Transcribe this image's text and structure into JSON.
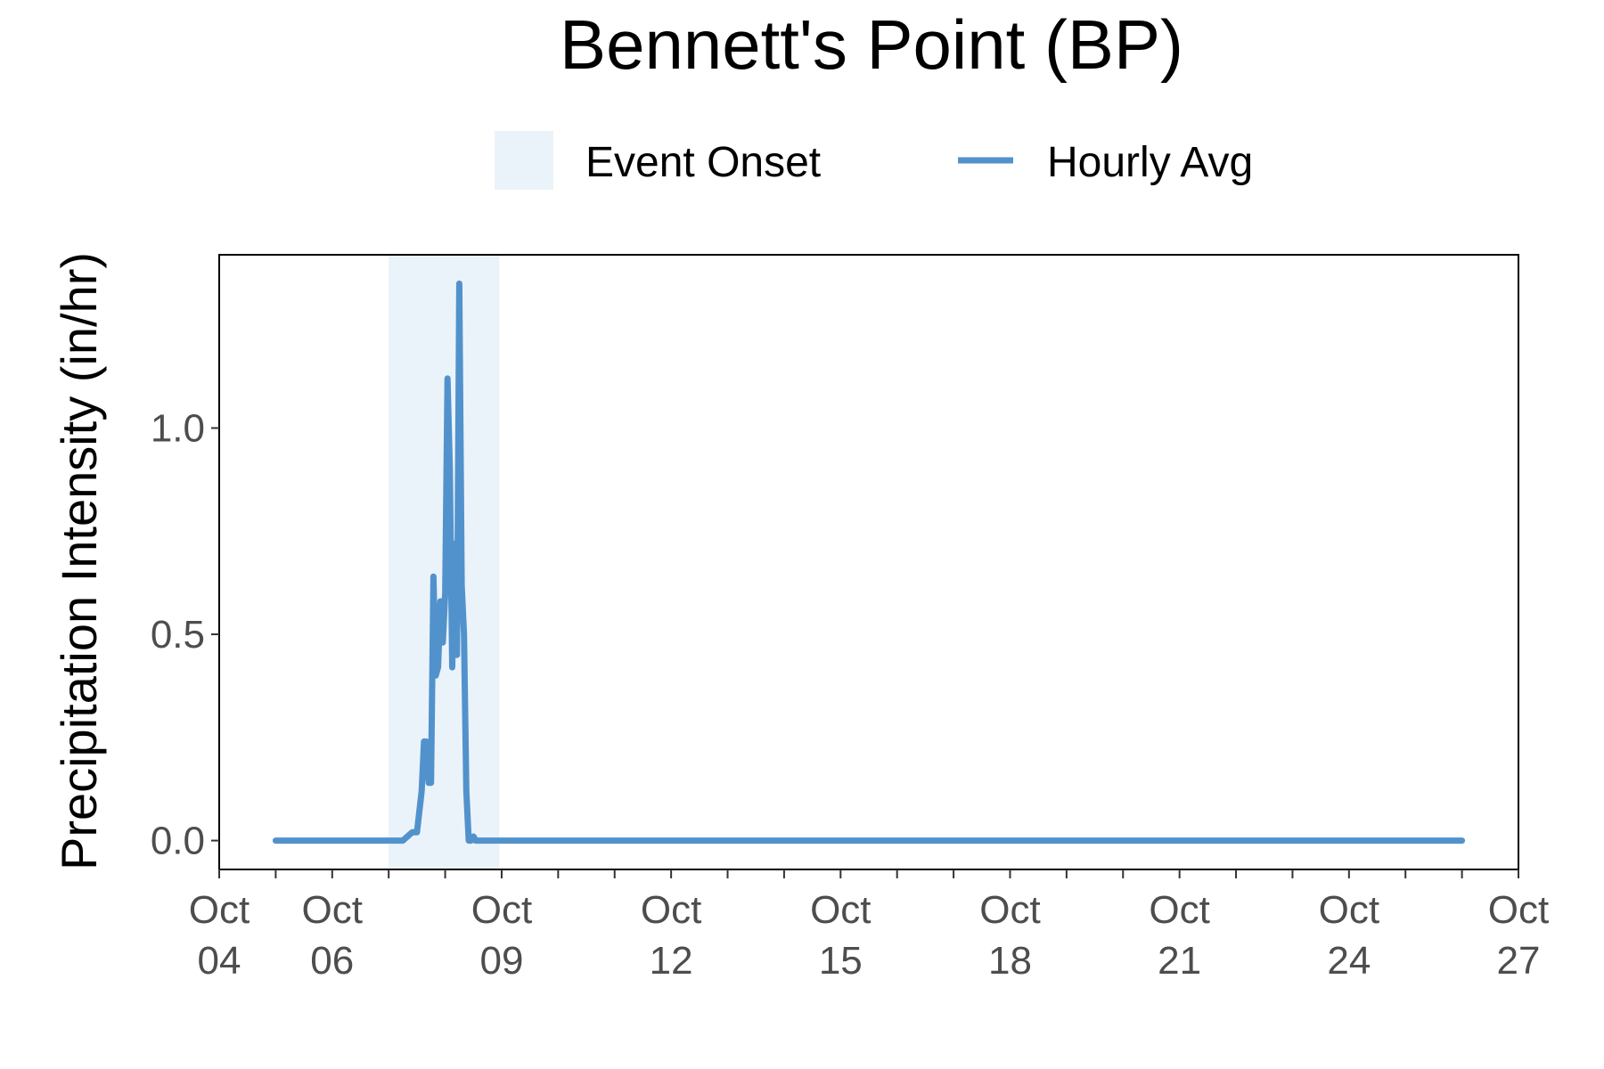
{
  "chart_data": {
    "type": "line",
    "title": "Bennett's Point (BP)",
    "xlabel": "",
    "ylabel": "Precipitation Intensity (in/hr)",
    "x_axis": {
      "type": "date",
      "range": [
        "10-04",
        "10-27"
      ],
      "major_ticks": [
        {
          "value": "10-04",
          "line1": "Oct",
          "line2": "04"
        },
        {
          "value": "10-06",
          "line1": "Oct",
          "line2": "06"
        },
        {
          "value": "10-09",
          "line1": "Oct",
          "line2": "09"
        },
        {
          "value": "10-12",
          "line1": "Oct",
          "line2": "12"
        },
        {
          "value": "10-15",
          "line1": "Oct",
          "line2": "15"
        },
        {
          "value": "10-18",
          "line1": "Oct",
          "line2": "18"
        },
        {
          "value": "10-21",
          "line1": "Oct",
          "line2": "21"
        },
        {
          "value": "10-24",
          "line1": "Oct",
          "line2": "24"
        },
        {
          "value": "10-27",
          "line1": "Oct",
          "line2": "27"
        }
      ],
      "minor_tick_interval_days": 1
    },
    "y_axis": {
      "range": [
        -0.07,
        1.42
      ],
      "ticks": [
        {
          "value": 0.0,
          "label": "0.0"
        },
        {
          "value": 0.5,
          "label": "0.5"
        },
        {
          "value": 1.0,
          "label": "1.0"
        }
      ]
    },
    "grid": false,
    "legend": {
      "placement": "top",
      "items": [
        {
          "label": "Event Onset",
          "kind": "shade",
          "color": "#ebf3fa"
        },
        {
          "label": "Hourly Avg",
          "kind": "line",
          "color": "#5292cc"
        }
      ]
    },
    "shaded_regions": [
      {
        "name": "Event Onset",
        "start": "10-07 00:00",
        "end": "10-08 23:00",
        "color": "#ebf3fa"
      }
    ],
    "series": [
      {
        "name": "Hourly Avg",
        "color": "#5292cc",
        "points": [
          {
            "x": "10-05 00:00",
            "y": 0.0
          },
          {
            "x": "10-07 06:00",
            "y": 0.0
          },
          {
            "x": "10-07 10:00",
            "y": 0.02
          },
          {
            "x": "10-07 12:00",
            "y": 0.02
          },
          {
            "x": "10-07 14:00",
            "y": 0.12
          },
          {
            "x": "10-07 15:00",
            "y": 0.24
          },
          {
            "x": "10-07 16:00",
            "y": 0.24
          },
          {
            "x": "10-07 17:00",
            "y": 0.14
          },
          {
            "x": "10-07 18:00",
            "y": 0.14
          },
          {
            "x": "10-07 19:00",
            "y": 0.64
          },
          {
            "x": "10-07 20:00",
            "y": 0.4
          },
          {
            "x": "10-07 21:00",
            "y": 0.42
          },
          {
            "x": "10-07 22:00",
            "y": 0.58
          },
          {
            "x": "10-07 23:00",
            "y": 0.48
          },
          {
            "x": "10-08 00:00",
            "y": 0.6
          },
          {
            "x": "10-08 01:00",
            "y": 1.12
          },
          {
            "x": "10-08 02:00",
            "y": 0.9
          },
          {
            "x": "10-08 03:00",
            "y": 0.42
          },
          {
            "x": "10-08 04:00",
            "y": 0.72
          },
          {
            "x": "10-08 05:00",
            "y": 0.45
          },
          {
            "x": "10-08 06:00",
            "y": 1.35
          },
          {
            "x": "10-08 07:00",
            "y": 0.62
          },
          {
            "x": "10-08 08:00",
            "y": 0.5
          },
          {
            "x": "10-08 09:00",
            "y": 0.12
          },
          {
            "x": "10-08 10:00",
            "y": 0.0
          },
          {
            "x": "10-08 11:00",
            "y": 0.0
          },
          {
            "x": "10-08 12:00",
            "y": 0.01
          },
          {
            "x": "10-08 13:00",
            "y": 0.0
          },
          {
            "x": "10-26 00:00",
            "y": 0.0
          }
        ]
      }
    ]
  }
}
